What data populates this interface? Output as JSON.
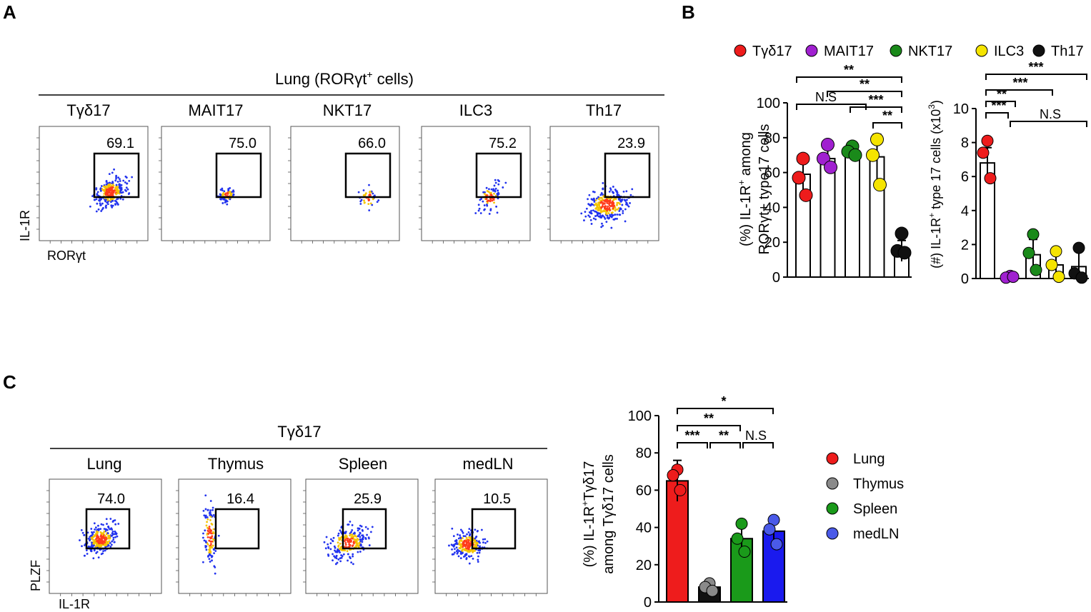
{
  "panels": {
    "a": "A",
    "b": "B",
    "c": "C"
  },
  "a": {
    "title_main": "Lung (RORγt",
    "title_sup": "+",
    "title_end": " cells)",
    "y_axis": "IL-1R",
    "x_axis": "RORγt",
    "plots": [
      {
        "label": "Tγδ17",
        "value": "69.1"
      },
      {
        "label": "MAIT17",
        "value": "75.0"
      },
      {
        "label": "NKT17",
        "value": "66.0"
      },
      {
        "label": "ILC3",
        "value": "75.2"
      },
      {
        "label": "Th17",
        "value": "23.9"
      }
    ]
  },
  "b_legend": [
    {
      "label": "Tγδ17",
      "color": "#ee1c1c"
    },
    {
      "label": "MAIT17",
      "color": "#a020d0"
    },
    {
      "label": "NKT17",
      "color": "#1a8a1a"
    },
    {
      "label": "ILC3",
      "color": "#f5e400"
    },
    {
      "label": "Th17",
      "color": "#111111"
    }
  ],
  "c": {
    "title": "Tγδ17",
    "y_axis": "PLZF",
    "x_axis": "IL-1R",
    "plots": [
      {
        "label": "Lung",
        "value": "74.0"
      },
      {
        "label": "Thymus",
        "value": "16.4"
      },
      {
        "label": "Spleen",
        "value": "25.9"
      },
      {
        "label": "medLN",
        "value": "10.5"
      }
    ],
    "legend": [
      {
        "label": "Lung",
        "color": "#ee1c1c"
      },
      {
        "label": "Thymus",
        "color": "#8a8a8a"
      },
      {
        "label": "Spleen",
        "color": "#1a9a1a"
      },
      {
        "label": "medLN",
        "color": "#4a5ae8"
      }
    ]
  },
  "chart_data": [
    {
      "id": "b1",
      "type": "bar",
      "categories": [
        "Tγδ17",
        "MAIT17",
        "NKT17",
        "ILC3",
        "Th17"
      ],
      "values": [
        59,
        68,
        72,
        69,
        15
      ],
      "errors": [
        9,
        8,
        4,
        13,
        6
      ],
      "points": [
        [
          68,
          57,
          47
        ],
        [
          76,
          68,
          63
        ],
        [
          75,
          72,
          70
        ],
        [
          79,
          70,
          53
        ],
        [
          25,
          15,
          14
        ]
      ],
      "colors": [
        "#ee1c1c",
        "#a020d0",
        "#1a8a1a",
        "#f5e400",
        "#111111"
      ],
      "bar_fill": "#ffffff",
      "ylabel_line1": "(%) IL-1R",
      "ylabel_sup": "+",
      "ylabel_line1_end": " among",
      "ylabel_line2": "RORγt+ type17 cells",
      "ylim": [
        0,
        100
      ],
      "yticks": [
        "0",
        "20",
        "40",
        "60",
        "80",
        "100"
      ],
      "significance": [
        {
          "from": 0,
          "to": 4,
          "label": "**"
        },
        {
          "from": 1,
          "to": 4,
          "label": "**"
        },
        {
          "from": 2,
          "to": 4,
          "label": "***"
        },
        {
          "from": 3,
          "to": 4,
          "label": "**"
        },
        {
          "from": 0,
          "to": 3,
          "label": "N.S"
        }
      ]
    },
    {
      "id": "b2",
      "type": "bar",
      "categories": [
        "Tγδ17",
        "MAIT17",
        "NKT17",
        "ILC3",
        "Th17"
      ],
      "values": [
        6.8,
        0.1,
        1.4,
        0.8,
        0.7
      ],
      "errors": [
        0.9,
        0.1,
        0.9,
        0.7,
        0.9
      ],
      "points": [
        [
          8.1,
          7.4,
          5.9
        ],
        [
          0.15,
          0.05,
          0.1
        ],
        [
          2.6,
          1.5,
          0.5
        ],
        [
          1.6,
          0.8,
          0.1
        ],
        [
          1.8,
          0.3,
          0.05
        ]
      ],
      "colors": [
        "#ee1c1c",
        "#a020d0",
        "#1a8a1a",
        "#f5e400",
        "#111111"
      ],
      "bar_fill": "#ffffff",
      "ylabel_line1": "(#) IL-1R",
      "ylabel_sup": "+",
      "ylabel_line1_end": " type 17 cells (x10",
      "ylabel_sup2": "3",
      "ylabel_line1_close": ")",
      "ylim": [
        0,
        10
      ],
      "yticks": [
        "0",
        "2",
        "4",
        "6",
        "8",
        "10"
      ],
      "significance": [
        {
          "from": 0,
          "to": 4,
          "label": "***"
        },
        {
          "from": 0,
          "to": 3,
          "label": "***"
        },
        {
          "from": 0,
          "to": 2,
          "label": "**"
        },
        {
          "from": 0,
          "to": 1,
          "label": "***"
        },
        {
          "from": 1,
          "to": 4,
          "label": "N.S"
        }
      ]
    },
    {
      "id": "c1",
      "type": "bar",
      "categories": [
        "Lung",
        "Thymus",
        "Spleen",
        "medLN"
      ],
      "values": [
        65,
        8,
        34,
        38
      ],
      "errors": [
        11,
        2,
        8,
        8
      ],
      "points": [
        [
          71,
          68,
          60
        ],
        [
          10,
          8,
          6
        ],
        [
          42,
          34,
          27
        ],
        [
          44,
          39,
          31
        ]
      ],
      "colors": [
        "#ee1c1c",
        "#111111",
        "#1a9a1a",
        "#1a1aee"
      ],
      "point_colors": [
        "#ee1c1c",
        "#8a8a8a",
        "#1a9a1a",
        "#4a5ae8"
      ],
      "ylabel_line1": "(%) IL-1R",
      "ylabel_sup": "+",
      "ylabel_line1_end": "Tγδ17",
      "ylabel_line2": "among Tγδ17 cells",
      "ylim": [
        0,
        100
      ],
      "yticks": [
        "0",
        "20",
        "40",
        "60",
        "80",
        "100"
      ],
      "significance": [
        {
          "from": 0,
          "to": 3,
          "label": "*"
        },
        {
          "from": 0,
          "to": 2,
          "label": "**"
        },
        {
          "from": 0,
          "to": 1,
          "label": "***"
        },
        {
          "from": 1,
          "to": 2,
          "label": "**"
        },
        {
          "from": 2,
          "to": 3,
          "label": "N.S"
        }
      ]
    }
  ]
}
